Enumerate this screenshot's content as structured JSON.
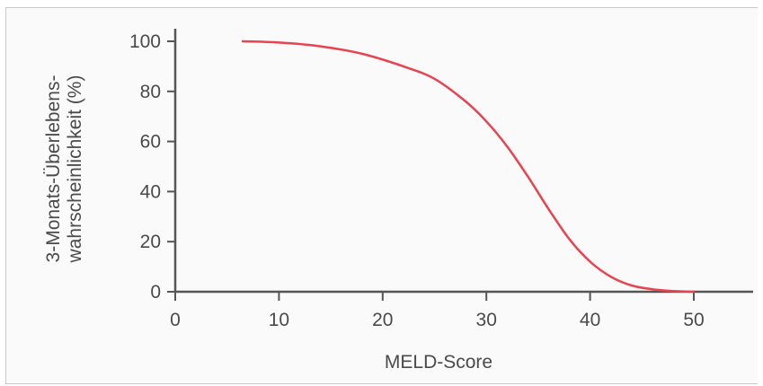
{
  "chart_data": {
    "type": "line",
    "title": "",
    "xlabel": "MELD-Score",
    "ylabel_lines": [
      "3-Monats-Überlebens-",
      "wahrscheinlichkeit (%)"
    ],
    "xlim": [
      0,
      55
    ],
    "ylim": [
      0,
      100
    ],
    "x_ticks": [
      0,
      10,
      20,
      30,
      40,
      50
    ],
    "y_ticks": [
      0,
      20,
      40,
      60,
      80,
      100
    ],
    "grid": false,
    "line_color": "#e8434f",
    "axis_color": "#555555",
    "series": [
      {
        "x": [
          6.5,
          10,
          14,
          18,
          22,
          25,
          28,
          30,
          32,
          34,
          36,
          38,
          40,
          42,
          44,
          46,
          48,
          50
        ],
        "y": [
          100,
          99.5,
          98,
          95,
          90,
          85,
          76,
          68,
          58,
          46,
          33,
          21,
          12,
          6,
          2.5,
          1,
          0.3,
          0
        ]
      }
    ]
  }
}
